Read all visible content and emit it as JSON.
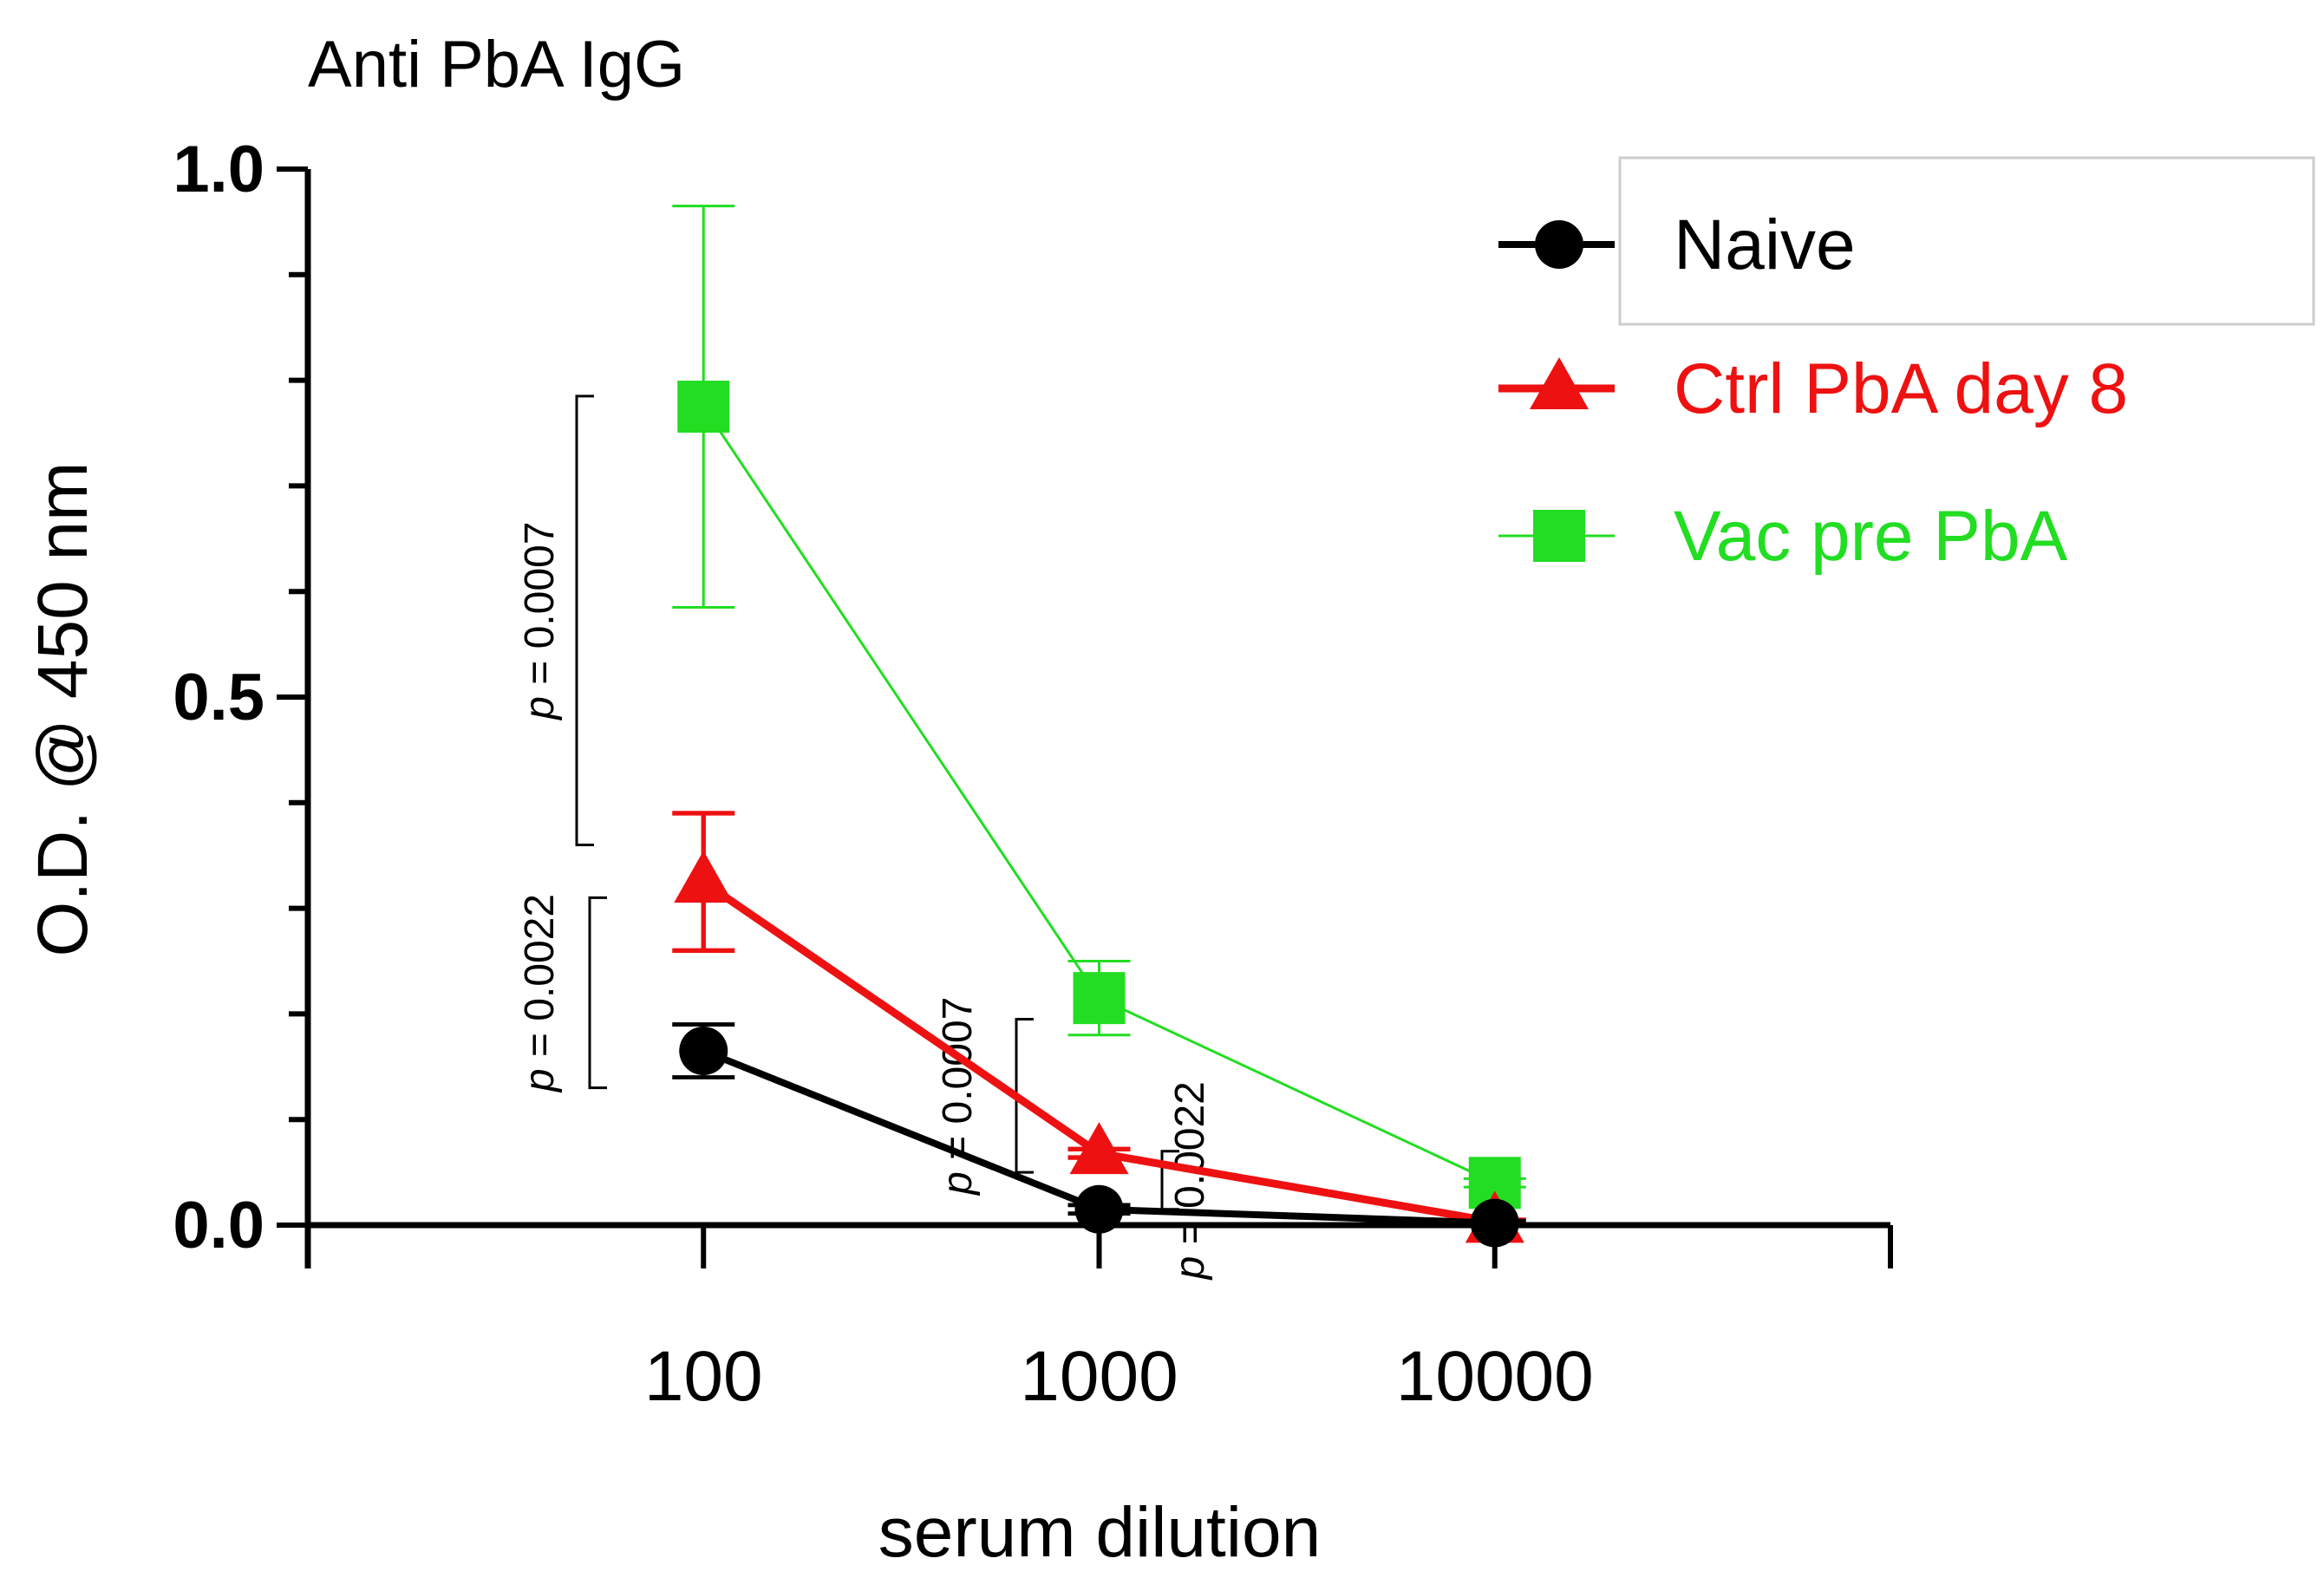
{
  "chart_data": {
    "type": "line",
    "title": "Anti PbA IgG",
    "xlabel": "serum dilution",
    "ylabel": "O.D. @ 450 nm",
    "x": [
      100,
      1000,
      10000
    ],
    "x_tick_labels": [
      "100",
      "1000",
      "10000"
    ],
    "xscale": "log",
    "xlim": [
      10,
      100000
    ],
    "ylim": [
      0,
      1.0
    ],
    "y_ticks": [
      0.0,
      0.5,
      1.0
    ],
    "y_tick_labels": [
      "0.0",
      "0.5",
      "1.0"
    ],
    "series": [
      {
        "name": "Naive",
        "color": "#000000",
        "marker": "circle",
        "values": [
          0.165,
          0.015,
          0.002
        ],
        "errors": [
          0.025,
          0.004,
          0.002
        ]
      },
      {
        "name": "Ctrl PbA day 8",
        "color": "#ee1111",
        "marker": "triangle",
        "values": [
          0.325,
          0.068,
          0.003
        ],
        "errors": [
          0.065,
          0.004,
          0.002
        ]
      },
      {
        "name": "Vac pre PbA",
        "color": "#22dd22",
        "marker": "square",
        "values": [
          0.775,
          0.215,
          0.04
        ],
        "errors": [
          0.19,
          0.035,
          0.004
        ]
      }
    ],
    "legend": {
      "position": "top-right",
      "entries": [
        "Naive",
        "Ctrl PbA day 8",
        "Vac pre PbA"
      ]
    },
    "annotations": [
      {
        "text_prefix": "p",
        "text": " = 0.0007",
        "x": 100,
        "y_range": [
          0.36,
          0.785
        ]
      },
      {
        "text_prefix": "p",
        "text": " = 0.0022",
        "x": 100,
        "y_range": [
          0.13,
          0.31
        ]
      },
      {
        "text_prefix": "p",
        "text": " = 0.0007",
        "x": 1000,
        "y_range": [
          0.05,
          0.195
        ]
      },
      {
        "text_prefix": "p",
        "text": " = 0.0022",
        "x": 1000,
        "y_range": [
          0.015,
          0.07
        ]
      }
    ]
  }
}
